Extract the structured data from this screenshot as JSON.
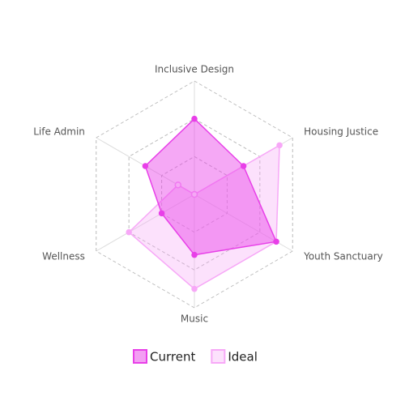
{
  "chart_data": {
    "type": "radar",
    "categories": [
      "Inclusive Design",
      "Housing Justice",
      "Youth Sanctuary",
      "Music",
      "Wellness",
      "Life Admin"
    ],
    "ylim": [
      0,
      3
    ],
    "yticks": [
      1,
      2,
      3
    ],
    "grid": true,
    "series": [
      {
        "name": "Current",
        "color": "#e83fe8",
        "values": [
          2.0,
          1.5,
          2.5,
          1.6,
          1.0,
          1.5
        ]
      },
      {
        "name": "Ideal",
        "color": "#f7a8f7",
        "values": [
          0,
          2.6,
          2.5,
          2.5,
          2.0,
          0.5
        ]
      }
    ]
  }
}
